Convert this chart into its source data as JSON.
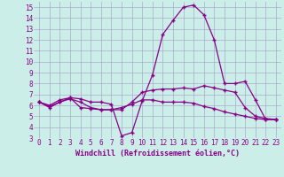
{
  "background_color": "#cceee8",
  "grid_color": "#aaaacc",
  "line_color": "#880088",
  "marker": "+",
  "xlabel": "Windchill (Refroidissement éolien,°C)",
  "xlim": [
    -0.5,
    23.5
  ],
  "ylim": [
    3,
    15.5
  ],
  "yticks": [
    3,
    4,
    5,
    6,
    7,
    8,
    9,
    10,
    11,
    12,
    13,
    14,
    15
  ],
  "xticks": [
    0,
    1,
    2,
    3,
    4,
    5,
    6,
    7,
    8,
    9,
    10,
    11,
    12,
    13,
    14,
    15,
    16,
    17,
    18,
    19,
    20,
    21,
    22,
    23
  ],
  "lines": [
    [
      0,
      6.3,
      1,
      5.8,
      2,
      6.3,
      3,
      6.7,
      4,
      6.6,
      5,
      6.3,
      6,
      6.3,
      7,
      6.1,
      8,
      3.2,
      9,
      3.5,
      10,
      6.4,
      11,
      8.8,
      12,
      12.5,
      13,
      13.8,
      14,
      15.0,
      15,
      15.2,
      16,
      14.3,
      17,
      12.0,
      18,
      8.0,
      19,
      8.0,
      20,
      8.2,
      21,
      6.5,
      22,
      4.7,
      23,
      4.7
    ],
    [
      0,
      6.3,
      1,
      6.0,
      2,
      6.5,
      3,
      6.7,
      4,
      5.8,
      5,
      5.7,
      6,
      5.6,
      7,
      5.6,
      8,
      5.6,
      9,
      6.3,
      10,
      7.2,
      11,
      7.4,
      12,
      7.5,
      13,
      7.5,
      14,
      7.6,
      15,
      7.5,
      16,
      7.8,
      17,
      7.6,
      18,
      7.4,
      19,
      7.2,
      20,
      5.8,
      21,
      5.0,
      22,
      4.8,
      23,
      4.7
    ],
    [
      0,
      6.3,
      1,
      5.9,
      2,
      6.3,
      3,
      6.6,
      4,
      6.3,
      5,
      5.8,
      6,
      5.6,
      7,
      5.6,
      8,
      5.8,
      9,
      6.1,
      10,
      6.5,
      11,
      6.5,
      12,
      6.3,
      13,
      6.3,
      14,
      6.3,
      15,
      6.2,
      16,
      5.9,
      17,
      5.7,
      18,
      5.4,
      19,
      5.2,
      20,
      5.0,
      21,
      4.8,
      22,
      4.7,
      23,
      4.7
    ]
  ],
  "tick_fontsize": 5.5,
  "xlabel_fontsize": 6.0
}
